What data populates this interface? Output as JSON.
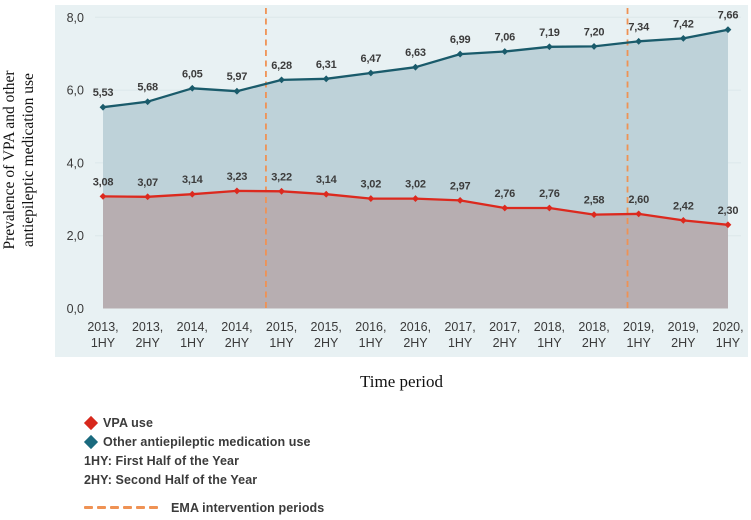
{
  "chart": {
    "y_axis_title_line1": "Prevalence of VPA and other",
    "y_axis_title_line2": "antiepileptic medication use"
  },
  "chart_data": {
    "type": "line",
    "title": "",
    "xlabel": "Time period",
    "ylabel": "Prevalence of VPA and other antiepileptic medication use",
    "ylim": [
      0,
      8
    ],
    "grid": "horizontal-faint",
    "legend_position": "bottom-left",
    "y_ticks": [
      {
        "value": 0,
        "label": "0,0"
      },
      {
        "value": 2,
        "label": "2,0"
      },
      {
        "value": 4,
        "label": "4,0"
      },
      {
        "value": 6,
        "label": "6,0"
      },
      {
        "value": 8,
        "label": "8,0"
      }
    ],
    "categories": [
      "2013, 1HY",
      "2013, 2HY",
      "2014, 1HY",
      "2014, 2HY",
      "2015, 1HY",
      "2015, 2HY",
      "2016, 1HY",
      "2016, 2HY",
      "2017, 1HY",
      "2017, 2HY",
      "2018, 1HY",
      "2018, 2HY",
      "2019, 1HY",
      "2019, 2HY",
      "2020, 1HY"
    ],
    "series": [
      {
        "name": "Other antiepileptic medication use",
        "values": [
          5.53,
          5.68,
          6.05,
          5.97,
          6.28,
          6.31,
          6.47,
          6.63,
          6.99,
          7.06,
          7.19,
          7.2,
          7.34,
          7.42,
          7.66
        ],
        "labels": [
          "5,53",
          "5,68",
          "6,05",
          "5,97",
          "6,28",
          "6,31",
          "6,47",
          "6,63",
          "6,99",
          "7,06",
          "7,19",
          "7,20",
          "7,34",
          "7,42",
          "7,66"
        ]
      },
      {
        "name": "VPA use",
        "values": [
          3.08,
          3.07,
          3.14,
          3.23,
          3.22,
          3.14,
          3.02,
          3.02,
          2.97,
          2.76,
          2.76,
          2.58,
          2.6,
          2.42,
          2.3
        ],
        "labels": [
          "3,08",
          "3,07",
          "3,14",
          "3,23",
          "3,22",
          "3,14",
          "3,02",
          "3,02",
          "2,97",
          "2,76",
          "2,76",
          "2,58",
          "2,60",
          "2,42",
          "2,30"
        ]
      }
    ],
    "ema_intervention_positions": [
      3.65,
      11.75
    ]
  },
  "legend": {
    "vpa_label": "VPA use",
    "other_label": "Other antiepileptic medication use",
    "hy1_note": "1HY: First Half of the Year",
    "hy2_note": "2HY: Second Half of the Year",
    "ema_label": "EMA intervention periods"
  },
  "colors": {
    "panel_bg": "#e8f1f3",
    "gridline": "#dce8ea",
    "other_line": "#1a5b6b",
    "other_fill": "#bed2d9",
    "vpa_line": "#dc291e",
    "vpa_fill": "#b7aeb1",
    "ema_dash": "#ef9254",
    "point_label_text": "#3c3c3c",
    "axis_text": "#3a3a3a",
    "legend_other_marker": "#1a6a7e",
    "legend_vpa_marker": "#d7281c"
  }
}
